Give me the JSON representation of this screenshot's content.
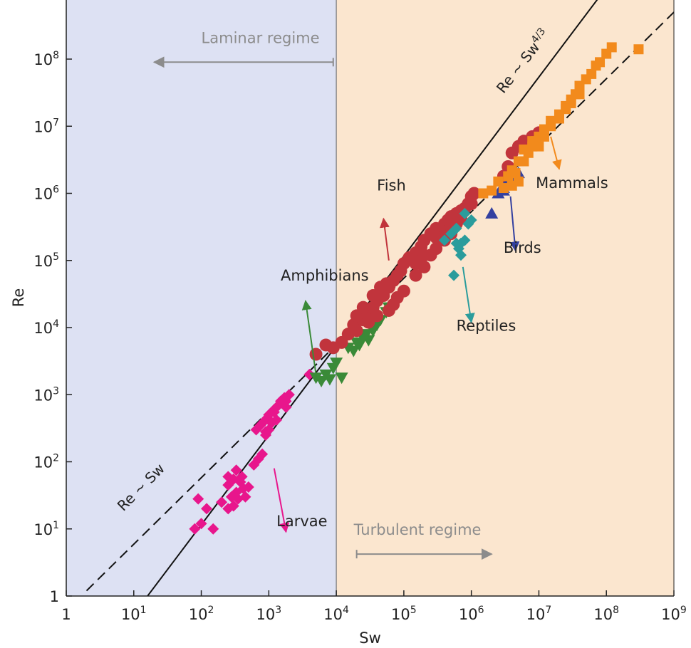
{
  "chart_data": {
    "type": "scatter",
    "xlabel": "Sw",
    "ylabel": "Re",
    "x_scale": "log",
    "y_scale": "log",
    "xlim": [
      1,
      1000000000
    ],
    "ylim": [
      1,
      1000000000
    ],
    "grid": false,
    "x_ticks": [
      {
        "value": 1,
        "base": "1",
        "exp": ""
      },
      {
        "value": 10,
        "base": "10",
        "exp": "1"
      },
      {
        "value": 100,
        "base": "10",
        "exp": "2"
      },
      {
        "value": 1000,
        "base": "10",
        "exp": "3"
      },
      {
        "value": 10000,
        "base": "10",
        "exp": "4"
      },
      {
        "value": 100000,
        "base": "10",
        "exp": "5"
      },
      {
        "value": 1000000,
        "base": "10",
        "exp": "6"
      },
      {
        "value": 10000000,
        "base": "10",
        "exp": "7"
      },
      {
        "value": 100000000,
        "base": "10",
        "exp": "8"
      },
      {
        "value": 1000000000,
        "base": "10",
        "exp": "9"
      }
    ],
    "y_ticks": [
      {
        "value": 1,
        "base": "1",
        "exp": ""
      },
      {
        "value": 10,
        "base": "10",
        "exp": "1"
      },
      {
        "value": 100,
        "base": "10",
        "exp": "2"
      },
      {
        "value": 1000,
        "base": "10",
        "exp": "3"
      },
      {
        "value": 10000,
        "base": "10",
        "exp": "4"
      },
      {
        "value": 100000,
        "base": "10",
        "exp": "5"
      },
      {
        "value": 1000000,
        "base": "10",
        "exp": "6"
      },
      {
        "value": 10000000,
        "base": "10",
        "exp": "7"
      },
      {
        "value": 100000000,
        "base": "10",
        "exp": "8"
      }
    ],
    "regions": [
      {
        "name": "laminar",
        "x_range": [
          1,
          10000
        ],
        "color": "#dde1f3"
      },
      {
        "name": "turbulent",
        "x_range": [
          10000,
          1000000000
        ],
        "color": "#fbe6cf"
      }
    ],
    "regime_labels": {
      "laminar": {
        "text": "Laminar regime",
        "arrow_from": 9000,
        "arrow_to": 20,
        "y": 30000000
      },
      "turbulent": {
        "text": "Turbulent regime",
        "arrow_from": 20000,
        "arrow_to": 2000000,
        "y": 15
      }
    },
    "lines": [
      {
        "law": "Re ~ Sw",
        "style": "dashed",
        "from": [
          2,
          1.2
        ],
        "to": [
          1000000000,
          500000000
        ]
      },
      {
        "law": "Re ~ Sw4/3",
        "style": "solid",
        "from": [
          16,
          1
        ],
        "to": [
          150000000,
          2000000000
        ]
      }
    ],
    "line_labels": [
      {
        "base": "Re ~ Sw",
        "sup": "",
        "x": 7,
        "y": 18,
        "angle": -45
      },
      {
        "base": "Re ~ Sw",
        "sup": "4/3",
        "x": 3000000,
        "y": 30000000,
        "angle": -52
      }
    ],
    "series": [
      {
        "name": "Larvae",
        "marker": "diamond",
        "color": "#e8168c",
        "label_pos": [
          1300,
          11
        ],
        "arrow_from": [
          1200,
          80
        ],
        "arrow_to": [
          1800,
          9
        ],
        "points": [
          [
            80,
            10
          ],
          [
            100,
            12
          ],
          [
            150,
            10
          ],
          [
            90,
            28
          ],
          [
            120,
            20
          ],
          [
            200,
            25
          ],
          [
            250,
            20
          ],
          [
            280,
            30
          ],
          [
            300,
            22
          ],
          [
            330,
            35
          ],
          [
            350,
            28
          ],
          [
            250,
            45
          ],
          [
            300,
            55
          ],
          [
            380,
            50
          ],
          [
            420,
            40
          ],
          [
            450,
            30
          ],
          [
            500,
            42
          ],
          [
            250,
            60
          ],
          [
            330,
            75
          ],
          [
            400,
            60
          ],
          [
            600,
            90
          ],
          [
            700,
            110
          ],
          [
            800,
            130
          ],
          [
            650,
            300
          ],
          [
            750,
            350
          ],
          [
            850,
            400
          ],
          [
            900,
            280
          ],
          [
            950,
            450
          ],
          [
            1000,
            500
          ],
          [
            1100,
            380
          ],
          [
            1200,
            600
          ],
          [
            1300,
            420
          ],
          [
            1400,
            700
          ],
          [
            1500,
            800
          ],
          [
            1600,
            750
          ],
          [
            1700,
            900
          ],
          [
            1800,
            650
          ],
          [
            2000,
            1000
          ],
          [
            1200,
            550
          ],
          [
            900,
            250
          ],
          [
            1000,
            300
          ],
          [
            1800,
            800
          ],
          [
            4000,
            2000
          ]
        ]
      },
      {
        "name": "Amphibians",
        "marker": "triangle-down",
        "color": "#3a8a38",
        "label_pos": [
          1500,
          50000
        ],
        "arrow_from": [
          5000,
          2000
        ],
        "arrow_to": [
          3500,
          25000
        ],
        "points": [
          [
            5000,
            1800
          ],
          [
            6000,
            1600
          ],
          [
            7000,
            2000
          ],
          [
            8000,
            1700
          ],
          [
            9000,
            2500
          ],
          [
            10000,
            3000
          ],
          [
            12000,
            1800
          ],
          [
            15000,
            5000
          ],
          [
            18000,
            4500
          ],
          [
            20000,
            6000
          ],
          [
            25000,
            7000
          ],
          [
            30000,
            6500
          ],
          [
            35000,
            9000
          ],
          [
            40000,
            11000
          ],
          [
            45000,
            13000
          ],
          [
            55000,
            17000
          ],
          [
            60000,
            20000
          ],
          [
            70000,
            20000
          ],
          [
            28000,
            8000
          ],
          [
            22000,
            5500
          ]
        ]
      },
      {
        "name": "Fish",
        "marker": "circle",
        "color": "#c1343c",
        "label_pos": [
          40000,
          1100000
        ],
        "arrow_from": [
          60000,
          100000
        ],
        "arrow_to": [
          50000,
          420000
        ],
        "points": [
          [
            5000,
            4000
          ],
          [
            7000,
            5500
          ],
          [
            9000,
            5000
          ],
          [
            12000,
            6000
          ],
          [
            15000,
            8000
          ],
          [
            18000,
            11000
          ],
          [
            20000,
            9000
          ],
          [
            25000,
            13000
          ],
          [
            30000,
            16000
          ],
          [
            35000,
            20000
          ],
          [
            40000,
            25000
          ],
          [
            50000,
            30000
          ],
          [
            60000,
            40000
          ],
          [
            70000,
            50000
          ],
          [
            80000,
            60000
          ],
          [
            90000,
            70000
          ],
          [
            100000,
            90000
          ],
          [
            120000,
            110000
          ],
          [
            150000,
            130000
          ],
          [
            180000,
            160000
          ],
          [
            200000,
            200000
          ],
          [
            250000,
            250000
          ],
          [
            300000,
            300000
          ],
          [
            350000,
            280000
          ],
          [
            400000,
            350000
          ],
          [
            450000,
            400000
          ],
          [
            500000,
            450000
          ],
          [
            600000,
            500000
          ],
          [
            700000,
            550000
          ],
          [
            800000,
            600000
          ],
          [
            900000,
            700000
          ],
          [
            1000000,
            900000
          ],
          [
            1100000,
            1000000
          ],
          [
            3000000,
            1800000
          ],
          [
            3500000,
            2500000
          ],
          [
            4000000,
            4000000
          ],
          [
            5000000,
            5000000
          ],
          [
            6000000,
            6000000
          ],
          [
            8000000,
            7000000
          ],
          [
            10000000,
            8000000
          ],
          [
            30000,
            12000
          ],
          [
            40000,
            15000
          ],
          [
            60000,
            18000
          ],
          [
            70000,
            22000
          ],
          [
            80000,
            28000
          ],
          [
            100000,
            35000
          ],
          [
            150000,
            60000
          ],
          [
            200000,
            80000
          ],
          [
            250000,
            120000
          ],
          [
            300000,
            150000
          ],
          [
            400000,
            200000
          ],
          [
            500000,
            250000
          ],
          [
            20000,
            15000
          ],
          [
            25000,
            20000
          ],
          [
            35000,
            30000
          ],
          [
            45000,
            40000
          ],
          [
            55000,
            45000
          ],
          [
            150000,
            90000
          ],
          [
            200000,
            120000
          ],
          [
            300000,
            220000
          ],
          [
            500000,
            320000
          ],
          [
            1000000,
            700000
          ],
          [
            600000,
            350000
          ],
          [
            700000,
            420000
          ]
        ]
      },
      {
        "name": "Reptiles",
        "marker": "diamond",
        "color": "#2a9c9c",
        "label_pos": [
          600000,
          9000
        ],
        "arrow_from": [
          750000,
          80000
        ],
        "arrow_to": [
          1000000,
          12000
        ],
        "points": [
          [
            400000,
            200000
          ],
          [
            500000,
            250000
          ],
          [
            600000,
            300000
          ],
          [
            650000,
            150000
          ],
          [
            700000,
            180000
          ],
          [
            800000,
            200000
          ],
          [
            900000,
            350000
          ],
          [
            1000000,
            400000
          ],
          [
            800000,
            500000
          ],
          [
            600000,
            180000
          ],
          [
            700000,
            120000
          ],
          [
            550000,
            60000
          ]
        ]
      },
      {
        "name": "Birds",
        "marker": "triangle-up",
        "color": "#3340a0",
        "label_pos": [
          3000000,
          130000
        ],
        "arrow_from": [
          3800000,
          900000
        ],
        "arrow_to": [
          4500000,
          140000
        ],
        "points": [
          [
            2000000,
            500000
          ],
          [
            2500000,
            1000000
          ],
          [
            3000000,
            1200000
          ],
          [
            3500000,
            1500000
          ],
          [
            4000000,
            1600000
          ],
          [
            5000000,
            2000000
          ],
          [
            3000000,
            1100000
          ]
        ]
      },
      {
        "name": "Mammals",
        "marker": "square",
        "color": "#f28a1c",
        "label_pos": [
          9000000,
          1200000
        ],
        "arrow_from": [
          15000000,
          7000000
        ],
        "arrow_to": [
          20000000,
          2300000
        ],
        "points": [
          [
            1500000,
            1000000
          ],
          [
            2000000,
            1100000
          ],
          [
            2500000,
            1500000
          ],
          [
            3000000,
            1200000
          ],
          [
            3500000,
            1800000
          ],
          [
            4000000,
            1300000
          ],
          [
            4500000,
            2000000
          ],
          [
            5000000,
            1500000
          ],
          [
            6000000,
            3000000
          ],
          [
            7000000,
            4000000
          ],
          [
            8000000,
            5000000
          ],
          [
            9000000,
            6000000
          ],
          [
            10000000,
            7000000
          ],
          [
            12000000,
            9000000
          ],
          [
            15000000,
            12000000
          ],
          [
            20000000,
            15000000
          ],
          [
            25000000,
            20000000
          ],
          [
            30000000,
            25000000
          ],
          [
            35000000,
            30000000
          ],
          [
            40000000,
            40000000
          ],
          [
            50000000,
            50000000
          ],
          [
            60000000,
            60000000
          ],
          [
            70000000,
            80000000
          ],
          [
            80000000,
            90000000
          ],
          [
            100000000,
            120000000
          ],
          [
            120000000,
            150000000
          ],
          [
            300000000,
            140000000
          ],
          [
            10000000,
            5000000
          ],
          [
            12000000,
            7000000
          ],
          [
            15000000,
            10000000
          ],
          [
            20000000,
            13000000
          ],
          [
            25000000,
            18000000
          ],
          [
            30000000,
            22000000
          ],
          [
            40000000,
            30000000
          ],
          [
            6000000,
            4500000
          ],
          [
            8000000,
            6000000
          ],
          [
            4000000,
            2200000
          ],
          [
            5000000,
            3000000
          ]
        ]
      }
    ]
  }
}
